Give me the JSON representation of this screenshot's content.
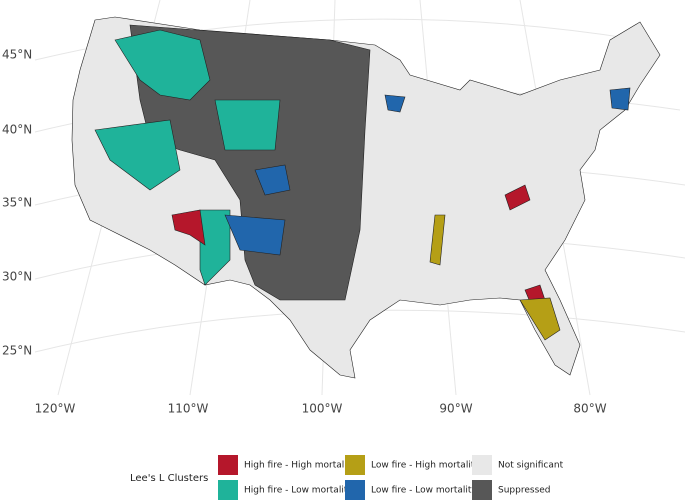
{
  "map": {
    "lat_labels": [
      "45°N",
      "40°N",
      "35°N",
      "30°N",
      "25°N"
    ],
    "lon_labels": [
      "120°W",
      "110°W",
      "100°W",
      "90°W",
      "80°W"
    ],
    "legend": {
      "title": "Lee's L Clusters",
      "items": [
        {
          "label": "High fire - High mortality",
          "color": "#b5172b"
        },
        {
          "label": "High fire - Low mortality",
          "color": "#1fb39a"
        },
        {
          "label": "Low fire - High mortality",
          "color": "#b59f16"
        },
        {
          "label": "Low fire - Low mortality",
          "color": "#2166ac"
        },
        {
          "label": "Not significant",
          "color": "#e8e8e8"
        },
        {
          "label": "Suppressed",
          "color": "#575757"
        }
      ]
    }
  }
}
